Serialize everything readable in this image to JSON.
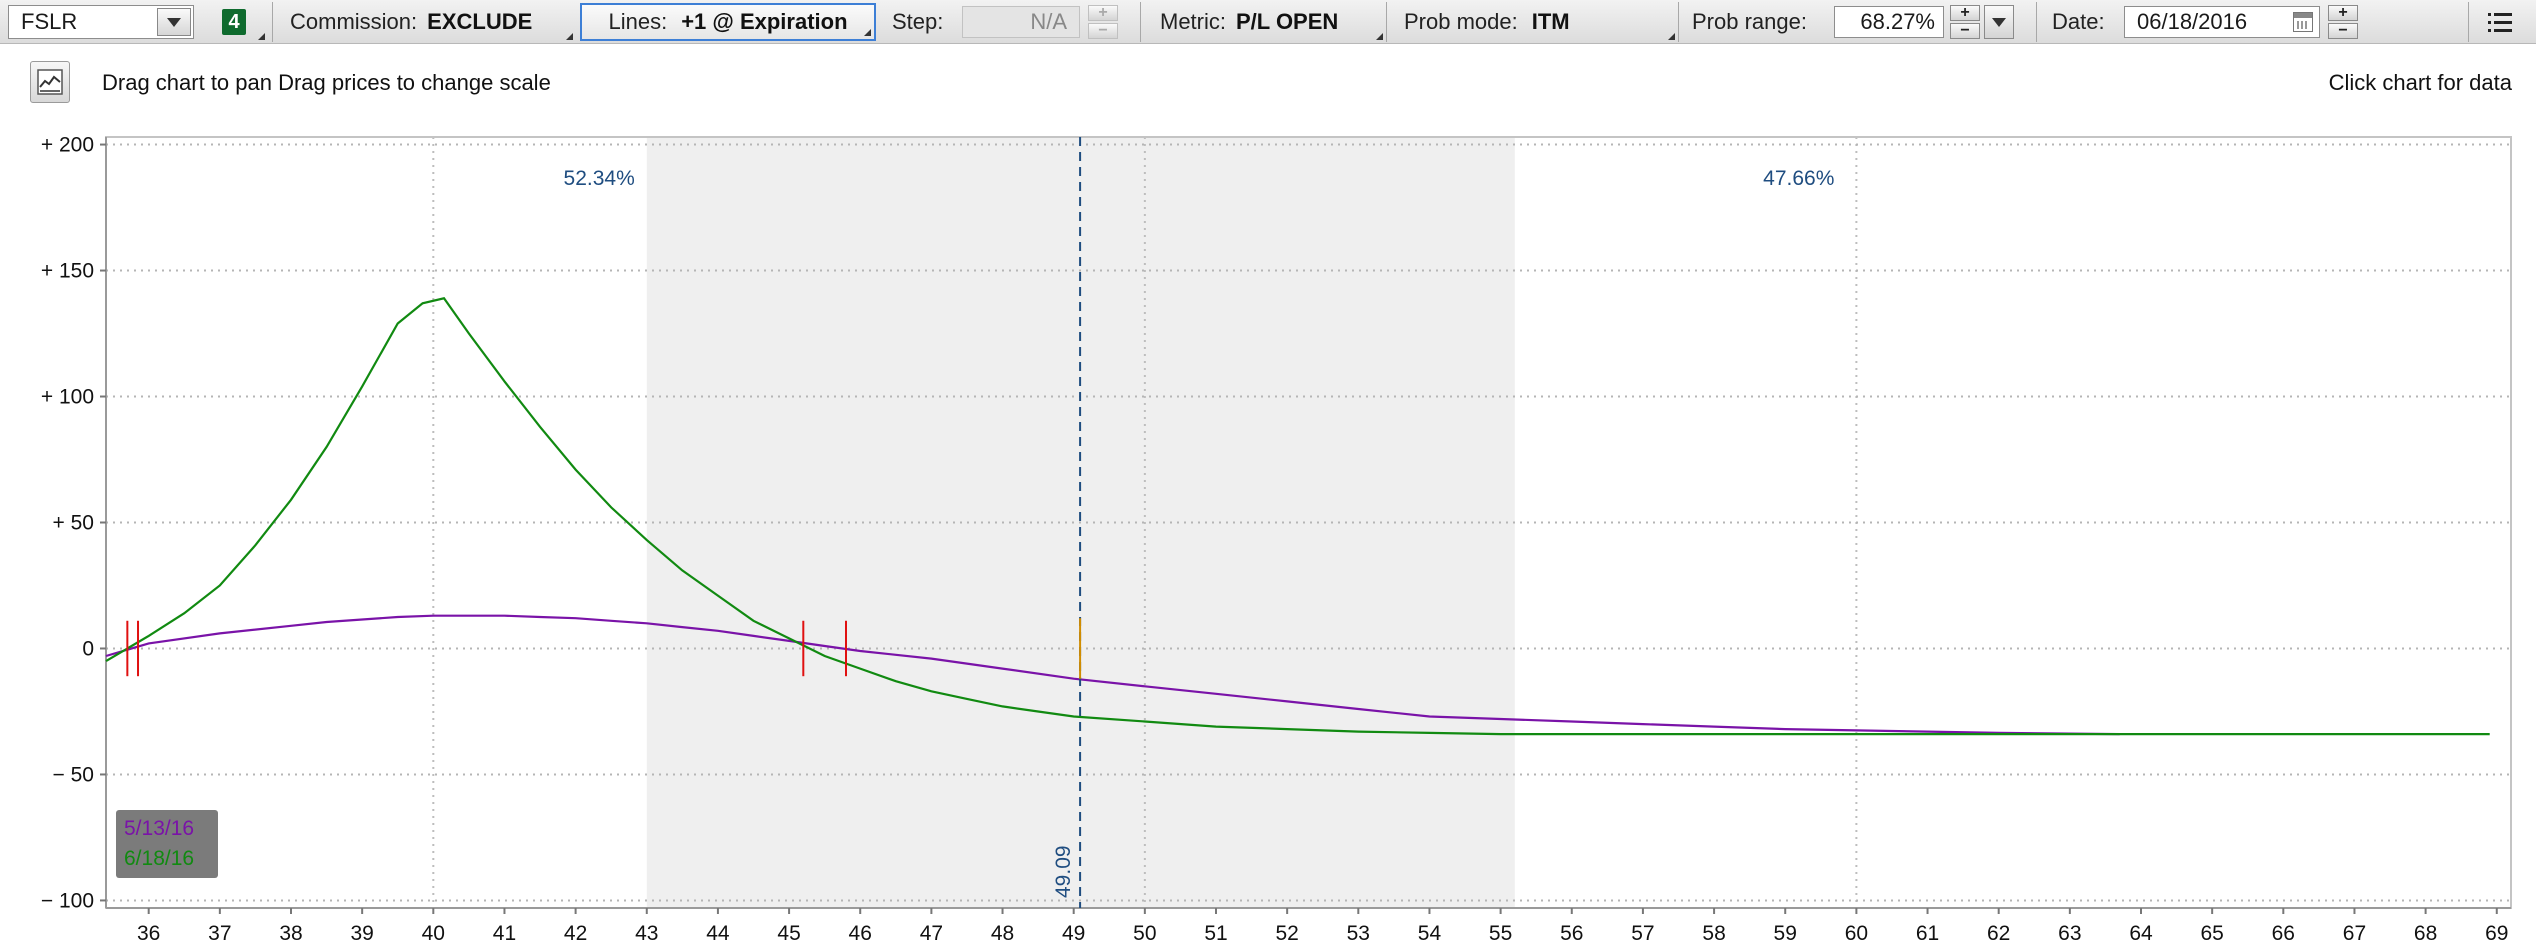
{
  "toolbar": {
    "symbol": "FSLR",
    "badge": "4",
    "commission_label": "Commission:",
    "commission_value": "EXCLUDE",
    "lines_label": "Lines:",
    "lines_value": "+1 @ Expiration",
    "step_label": "Step:",
    "step_value": "N/A",
    "metric_label": "Metric:",
    "metric_value": "P/L OPEN",
    "prob_mode_label": "Prob mode:",
    "prob_mode_value": "ITM",
    "prob_range_label": "Prob range:",
    "prob_range_value": "68.27%",
    "date_label": "Date:",
    "date_value": "06/18/2016",
    "icons": [
      "chevron-down-icon",
      "plus-icon",
      "minus-icon",
      "calendar-icon",
      "menu-icon"
    ]
  },
  "infobar": {
    "hint_left": "Drag chart to pan Drag prices to change scale",
    "hint_right": "Click chart for data"
  },
  "chart_data": {
    "type": "line",
    "xlim": [
      35.4,
      69.2
    ],
    "ylim": [
      -103,
      203
    ],
    "x_ticks": [
      36,
      37,
      38,
      39,
      40,
      41,
      42,
      43,
      44,
      45,
      46,
      47,
      48,
      49,
      50,
      51,
      52,
      53,
      54,
      55,
      56,
      57,
      58,
      59,
      60,
      61,
      62,
      63,
      64,
      65,
      66,
      67,
      68,
      69
    ],
    "y_ticks": [
      200,
      150,
      100,
      50,
      0,
      -50,
      -100
    ],
    "y_tick_labels": [
      "+ 200",
      "+ 150",
      "+ 100",
      "+ 50",
      "0",
      "− 50",
      "− 100"
    ],
    "grid": true,
    "probability_band": {
      "from": 43.0,
      "to": 55.2,
      "color": "#efefef"
    },
    "prob_below": "52.34%",
    "prob_above": "47.66%",
    "current_price": 49.09,
    "current_price_label": "49.09",
    "breakevens": [
      35.7,
      35.85,
      45.2,
      45.8
    ],
    "legend_position": "bottom-left",
    "series": [
      {
        "name": "5/13/16",
        "color": "#7a13a8",
        "x": [
          35.4,
          36,
          37,
          38,
          38.5,
          39,
          39.5,
          40,
          40.5,
          41,
          41.5,
          42,
          42.5,
          43,
          43.5,
          44,
          44.5,
          45,
          45.5,
          46,
          46.5,
          47,
          48,
          49,
          50,
          51,
          52,
          53,
          54,
          55,
          56,
          57,
          58,
          59,
          60,
          61,
          62,
          63,
          63.7
        ],
        "y": [
          -3,
          2,
          6,
          9,
          10.5,
          11.5,
          12.5,
          13,
          13,
          13,
          12.5,
          12,
          11,
          10,
          8.5,
          7,
          5,
          3,
          1,
          -1,
          -2.5,
          -4,
          -8,
          -12,
          -15,
          -18,
          -21,
          -24,
          -27,
          -28,
          -29,
          -30,
          -31,
          -32,
          -32.5,
          -33,
          -33.5,
          -33.8,
          -34
        ]
      },
      {
        "name": "6/18/16",
        "color": "#118a11",
        "x": [
          35.4,
          36,
          36.5,
          37,
          37.5,
          38,
          38.5,
          39,
          39.5,
          39.85,
          40.15,
          40.5,
          41,
          41.5,
          42,
          42.5,
          43,
          43.5,
          44,
          44.5,
          45,
          45.5,
          46,
          46.5,
          47,
          47.5,
          48,
          48.5,
          49,
          50,
          51,
          52,
          53,
          54,
          55,
          56,
          57,
          58,
          59,
          60,
          61,
          62,
          63,
          64,
          65,
          66,
          67,
          68,
          68.9
        ],
        "y": [
          -5,
          5,
          14,
          25,
          41,
          59,
          80,
          104,
          129,
          137,
          139,
          125,
          106,
          88,
          71,
          56,
          43,
          31,
          21,
          11,
          4,
          -3,
          -8,
          -13,
          -17,
          -20,
          -23,
          -25,
          -27,
          -29,
          -31,
          -32,
          -33,
          -33.5,
          -34,
          -34,
          -34,
          -34,
          -34,
          -34,
          -34,
          -34,
          -34,
          -34,
          -34,
          -34,
          -34,
          -34,
          -34
        ]
      }
    ]
  }
}
